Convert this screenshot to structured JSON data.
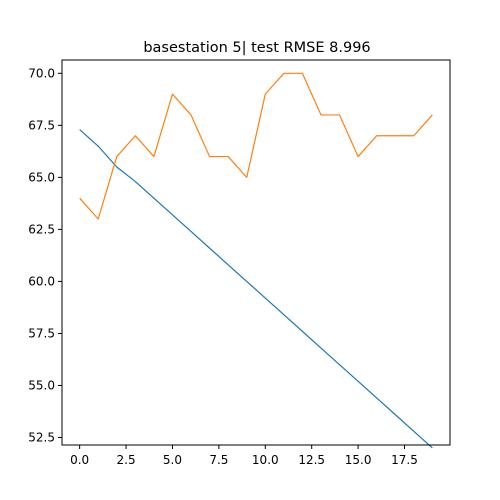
{
  "chart_data": {
    "type": "line",
    "title": "basestation 5| test RMSE 8.996",
    "xlabel": "",
    "ylabel": "",
    "xlim": [
      -0.95,
      19.95
    ],
    "ylim": [
      52.14,
      70.64
    ],
    "grid": false,
    "xticks": [
      0.0,
      2.5,
      5.0,
      7.5,
      10.0,
      12.5,
      15.0,
      17.5
    ],
    "xtick_labels": [
      "0.0",
      "2.5",
      "5.0",
      "7.5",
      "10.0",
      "12.5",
      "15.0",
      "17.5"
    ],
    "yticks": [
      52.5,
      55.0,
      57.5,
      60.0,
      62.5,
      65.0,
      67.5,
      70.0
    ],
    "ytick_labels": [
      "52.5",
      "55.0",
      "57.5",
      "60.0",
      "62.5",
      "65.0",
      "67.5",
      "70.0"
    ],
    "x": [
      0,
      1,
      2,
      3,
      4,
      5,
      6,
      7,
      8,
      9,
      10,
      11,
      12,
      13,
      14,
      15,
      16,
      17,
      18,
      19
    ],
    "series": [
      {
        "color": "#1f77b4",
        "values": [
          67.3,
          66.5,
          65.5,
          64.8,
          64.0,
          63.2,
          62.4,
          61.6,
          60.8,
          60.0,
          59.2,
          58.4,
          57.6,
          56.8,
          56.0,
          55.2,
          54.4,
          53.6,
          52.8,
          52.0
        ]
      },
      {
        "color": "#ff7f0e",
        "values": [
          64,
          63,
          66,
          67,
          66,
          69,
          68,
          66,
          66,
          65,
          69,
          70,
          70,
          68,
          68,
          66,
          67,
          67,
          67,
          68
        ]
      }
    ]
  }
}
